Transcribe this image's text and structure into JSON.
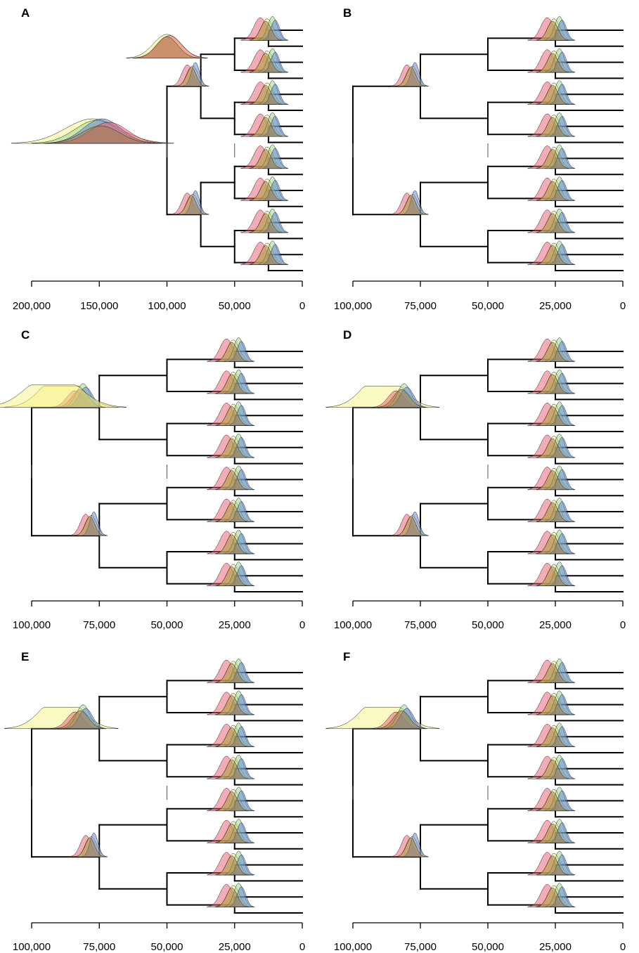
{
  "figure": {
    "colors": {
      "yellow": "#f5f387",
      "red": "#ea5b6d",
      "blue": "#5b7fd6",
      "green": "#9ad58a",
      "brown_overlap": "#a1783f",
      "tree": "#000000"
    }
  },
  "chart_data": [
    {
      "panel": "A",
      "type": "density-tree",
      "xlim": [
        200000,
        0
      ],
      "ticks": [
        200000,
        150000,
        100000,
        50000,
        0
      ],
      "tick_labels": [
        "200,000",
        "150,000",
        "100,000",
        "50,000",
        "0"
      ],
      "node_ages": {
        "root": 100000,
        "level2": 75000,
        "level3": 50000,
        "level4": 25000
      },
      "root_estimate_peaks": {
        "yellow": 155000,
        "green": 152000,
        "blue": 148000,
        "red": 143000
      },
      "level2_estimate_peaks": {
        "yellow": 103000,
        "red": 98000
      },
      "tips": 16
    },
    {
      "panel": "B",
      "type": "density-tree",
      "xlim": [
        100000,
        0
      ],
      "ticks": [
        100000,
        75000,
        50000,
        25000,
        0
      ],
      "tick_labels": [
        "100,000",
        "75,000",
        "50,000",
        "25,000",
        "0"
      ],
      "node_ages": {
        "root": 100000,
        "level2": 75000,
        "level3": 50000,
        "level4": 25000
      },
      "level2_estimate_peaks": {
        "red": 80000,
        "blue": 77000
      },
      "tips": 16
    },
    {
      "panel": "C",
      "type": "density-tree",
      "xlim": [
        100000,
        0
      ],
      "ticks": [
        100000,
        75000,
        50000,
        25000,
        0
      ],
      "tick_labels": [
        "100,000",
        "75,000",
        "50,000",
        "25,000",
        "0"
      ],
      "node_ages": {
        "root": 100000,
        "level2": 75000,
        "level3": 50000,
        "level4": 25000
      },
      "root_estimate_peak_yellow": 92000,
      "tips": 16
    },
    {
      "panel": "D",
      "type": "density-tree",
      "xlim": [
        100000,
        0
      ],
      "ticks": [
        100000,
        75000,
        50000,
        25000,
        0
      ],
      "tick_labels": [
        "100,000",
        "75,000",
        "50,000",
        "25,000",
        "0"
      ],
      "node_ages": {
        "root": 100000,
        "level2": 75000,
        "level3": 50000,
        "level4": 25000
      },
      "tips": 16
    },
    {
      "panel": "E",
      "type": "density-tree",
      "xlim": [
        100000,
        0
      ],
      "ticks": [
        100000,
        75000,
        50000,
        25000,
        0
      ],
      "tick_labels": [
        "100,000",
        "75,000",
        "50,000",
        "25,000",
        "0"
      ],
      "node_ages": {
        "root": 100000,
        "level2": 75000,
        "level3": 50000,
        "level4": 25000
      },
      "tips": 16
    },
    {
      "panel": "F",
      "type": "density-tree",
      "xlim": [
        100000,
        0
      ],
      "ticks": [
        100000,
        75000,
        50000,
        25000,
        0
      ],
      "tick_labels": [
        "100,000",
        "75,000",
        "50,000",
        "25,000",
        "0"
      ],
      "node_ages": {
        "root": 100000,
        "level2": 75000,
        "level3": 50000,
        "level4": 25000
      },
      "tips": 16
    }
  ]
}
